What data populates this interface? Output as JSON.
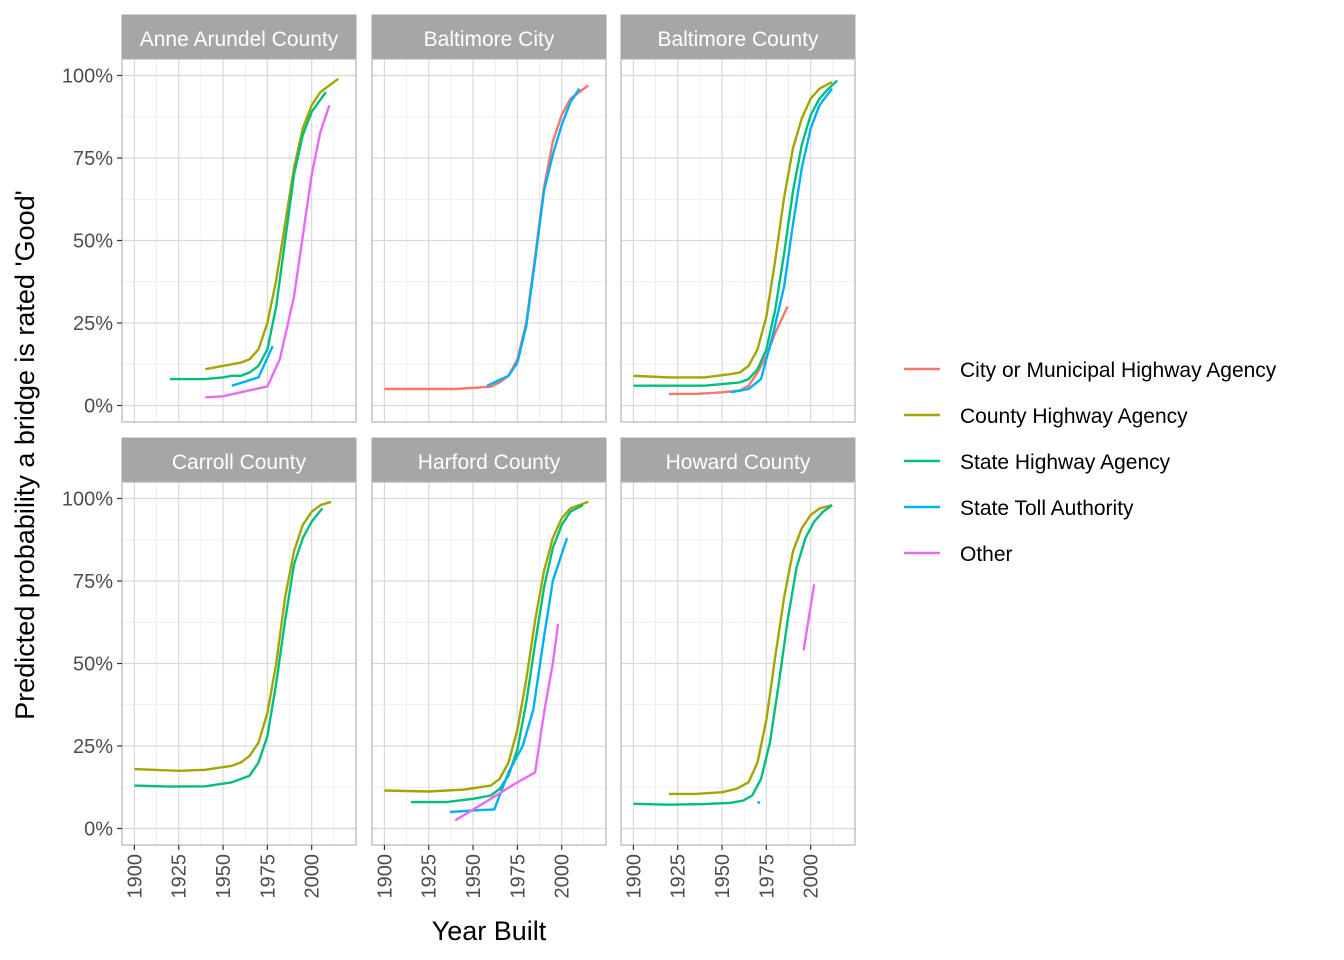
{
  "chart_data": {
    "type": "line",
    "xlabel": "Year Built",
    "ylabel": "Predicted probability a bridge is rated 'Good'",
    "xlim": [
      1893,
      2025
    ],
    "ylim": [
      -0.05,
      1.05
    ],
    "x_ticks": [
      1900,
      1925,
      1950,
      1975,
      2000
    ],
    "y_ticks": [
      0,
      0.25,
      0.5,
      0.75,
      1.0
    ],
    "y_tick_labels": [
      "0%",
      "25%",
      "50%",
      "75%",
      "100%"
    ],
    "grid": true,
    "legend_position": "right",
    "legend": [
      {
        "name": "City or Municipal Highway Agency",
        "color": "#F8766D"
      },
      {
        "name": "County Highway Agency",
        "color": "#A3A500"
      },
      {
        "name": "State Highway Agency",
        "color": "#00BF7D"
      },
      {
        "name": "State Toll Authority",
        "color": "#00B0F6"
      },
      {
        "name": "Other",
        "color": "#E76BF3"
      }
    ],
    "panels": [
      {
        "title": "Anne Arundel County",
        "series": [
          {
            "name": "County Highway Agency",
            "x": [
              1940,
              1950,
              1960,
              1965,
              1970,
              1975,
              1980,
              1985,
              1990,
              1995,
              2000,
              2005,
              2010,
              2015
            ],
            "y": [
              0.11,
              0.12,
              0.13,
              0.14,
              0.17,
              0.25,
              0.38,
              0.55,
              0.72,
              0.84,
              0.91,
              0.95,
              0.97,
              0.99
            ]
          },
          {
            "name": "State Highway Agency",
            "x": [
              1920,
              1930,
              1940,
              1950,
              1955,
              1960,
              1965,
              1970,
              1975,
              1980,
              1985,
              1990,
              1995,
              2000,
              2008
            ],
            "y": [
              0.08,
              0.08,
              0.08,
              0.085,
              0.09,
              0.09,
              0.1,
              0.12,
              0.17,
              0.3,
              0.5,
              0.7,
              0.82,
              0.89,
              0.95
            ]
          },
          {
            "name": "State Toll Authority",
            "x": [
              1955,
              1970,
              1978
            ],
            "y": [
              0.06,
              0.085,
              0.18
            ]
          },
          {
            "name": "Other",
            "x": [
              1940,
              1950,
              1975,
              1982,
              1990,
              2000,
              2005,
              2010
            ],
            "y": [
              0.025,
              0.028,
              0.058,
              0.14,
              0.33,
              0.7,
              0.83,
              0.91
            ]
          }
        ]
      },
      {
        "title": "Baltimore City",
        "series": [
          {
            "name": "City or Municipal Highway Agency",
            "x": [
              1900,
              1920,
              1940,
              1960,
              1965,
              1970,
              1975,
              1980,
              1985,
              1990,
              1995,
              2000,
              2005,
              2015
            ],
            "y": [
              0.05,
              0.05,
              0.05,
              0.057,
              0.07,
              0.09,
              0.14,
              0.25,
              0.45,
              0.66,
              0.8,
              0.88,
              0.93,
              0.97
            ]
          },
          {
            "name": "State Toll Authority",
            "x": [
              1958,
              1970,
              1975,
              1980,
              1985,
              1990,
              1995,
              2000,
              2005,
              2010
            ],
            "y": [
              0.06,
              0.09,
              0.13,
              0.24,
              0.44,
              0.65,
              0.76,
              0.85,
              0.92,
              0.96
            ]
          }
        ]
      },
      {
        "title": "Baltimore County",
        "series": [
          {
            "name": "City or Municipal Highway Agency",
            "x": [
              1920,
              1935,
              1950,
              1960,
              1965,
              1970,
              1975,
              1980,
              1987
            ],
            "y": [
              0.035,
              0.035,
              0.04,
              0.045,
              0.06,
              0.1,
              0.15,
              0.22,
              0.3
            ]
          },
          {
            "name": "County Highway Agency",
            "x": [
              1900,
              1920,
              1940,
              1955,
              1960,
              1965,
              1970,
              1975,
              1980,
              1985,
              1990,
              1995,
              2000,
              2005,
              2012
            ],
            "y": [
              0.09,
              0.085,
              0.085,
              0.095,
              0.1,
              0.12,
              0.17,
              0.27,
              0.44,
              0.63,
              0.78,
              0.87,
              0.93,
              0.96,
              0.98
            ]
          },
          {
            "name": "State Highway Agency",
            "x": [
              1900,
              1920,
              1940,
              1960,
              1965,
              1970,
              1975,
              1980,
              1985,
              1990,
              1995,
              2000,
              2005,
              2010,
              2015
            ],
            "y": [
              0.06,
              0.06,
              0.06,
              0.07,
              0.08,
              0.11,
              0.17,
              0.29,
              0.46,
              0.65,
              0.79,
              0.88,
              0.93,
              0.96,
              0.985
            ]
          },
          {
            "name": "State Toll Authority",
            "x": [
              1955,
              1965,
              1972,
              1978,
              1985,
              1990,
              1995,
              2000,
              2005,
              2012
            ],
            "y": [
              0.04,
              0.05,
              0.08,
              0.2,
              0.36,
              0.55,
              0.72,
              0.84,
              0.91,
              0.96
            ]
          }
        ]
      },
      {
        "title": "Carroll County",
        "series": [
          {
            "name": "County Highway Agency",
            "x": [
              1900,
              1925,
              1940,
              1955,
              1960,
              1965,
              1970,
              1975,
              1980,
              1985,
              1990,
              1995,
              2000,
              2005,
              2011
            ],
            "y": [
              0.18,
              0.175,
              0.178,
              0.19,
              0.2,
              0.22,
              0.26,
              0.35,
              0.5,
              0.7,
              0.84,
              0.92,
              0.96,
              0.98,
              0.99
            ]
          },
          {
            "name": "State Highway Agency",
            "x": [
              1900,
              1920,
              1940,
              1955,
              1965,
              1970,
              1975,
              1980,
              1985,
              1990,
              1995,
              2000,
              2006
            ],
            "y": [
              0.13,
              0.127,
              0.128,
              0.14,
              0.16,
              0.2,
              0.28,
              0.44,
              0.63,
              0.8,
              0.88,
              0.93,
              0.97
            ]
          }
        ]
      },
      {
        "title": "Harford County",
        "series": [
          {
            "name": "County Highway Agency",
            "x": [
              1900,
              1925,
              1945,
              1960,
              1965,
              1970,
              1975,
              1980,
              1985,
              1990,
              1995,
              2000,
              2005,
              2010,
              2015
            ],
            "y": [
              0.115,
              0.112,
              0.118,
              0.13,
              0.15,
              0.2,
              0.3,
              0.45,
              0.63,
              0.78,
              0.88,
              0.94,
              0.97,
              0.98,
              0.99
            ]
          },
          {
            "name": "State Highway Agency",
            "x": [
              1915,
              1935,
              1950,
              1960,
              1965,
              1970,
              1975,
              1980,
              1985,
              1990,
              1995,
              2000,
              2005,
              2012
            ],
            "y": [
              0.08,
              0.08,
              0.09,
              0.1,
              0.12,
              0.16,
              0.24,
              0.38,
              0.56,
              0.73,
              0.85,
              0.92,
              0.96,
              0.98
            ]
          },
          {
            "name": "State Toll Authority",
            "x": [
              1937,
              1950,
              1962,
              1970,
              1978,
              1984,
              1990,
              1995,
              2003
            ],
            "y": [
              0.05,
              0.055,
              0.058,
              0.17,
              0.25,
              0.36,
              0.58,
              0.75,
              0.88
            ]
          },
          {
            "name": "Other",
            "x": [
              1940,
              1960,
              1975,
              1985,
              1990,
              1995,
              1998
            ],
            "y": [
              0.025,
              0.09,
              0.14,
              0.17,
              0.35,
              0.5,
              0.62
            ]
          }
        ]
      },
      {
        "title": "Howard County",
        "series": [
          {
            "name": "County Highway Agency",
            "x": [
              1920,
              1935,
              1950,
              1958,
              1965,
              1970,
              1975,
              1980,
              1985,
              1990,
              1995,
              2000,
              2005,
              2012
            ],
            "y": [
              0.105,
              0.105,
              0.11,
              0.12,
              0.14,
              0.2,
              0.33,
              0.52,
              0.7,
              0.84,
              0.91,
              0.95,
              0.97,
              0.98
            ]
          },
          {
            "name": "State Highway Agency",
            "x": [
              1900,
              1920,
              1940,
              1955,
              1962,
              1967,
              1972,
              1977,
              1982,
              1987,
              1992,
              1997,
              2002,
              2007,
              2012
            ],
            "y": [
              0.075,
              0.072,
              0.074,
              0.078,
              0.085,
              0.1,
              0.15,
              0.26,
              0.44,
              0.63,
              0.79,
              0.88,
              0.93,
              0.96,
              0.98
            ]
          },
          {
            "name": "State Toll Authority",
            "x": [
              1970,
              1971.5
            ],
            "y": [
              0.08,
              0.078
            ]
          },
          {
            "name": "Other",
            "x": [
              1996,
              2002
            ],
            "y": [
              0.54,
              0.74
            ]
          }
        ]
      }
    ]
  }
}
